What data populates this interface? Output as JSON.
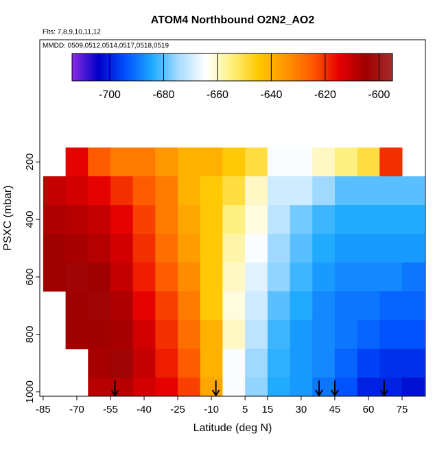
{
  "chart_data": {
    "type": "heatmap",
    "title": "ATOM4 Northbound O2N2_AO2",
    "flights": "Flts: 7,8,9,10,11,12",
    "dates": "MMDD: 0509,0512,0514,0517,0518,0519",
    "x_label": "Latitude (deg N)",
    "y_label": "PSXC (mbar)",
    "xlim": [
      -86.5,
      85.4
    ],
    "xticks": [
      -85,
      -70,
      -55,
      -40,
      -25,
      -10,
      5,
      15,
      30,
      45,
      60,
      75
    ],
    "ylim": [
      -225,
      1015
    ],
    "yticks": [
      200,
      400,
      600,
      800,
      1000
    ],
    "clim": [
      -714,
      -595
    ],
    "cticks": [
      -700,
      -680,
      -660,
      -640,
      -620,
      -600
    ],
    "colormap": [
      "#8a2be2",
      "#0000c8",
      "#0050ff",
      "#1eaaff",
      "#a8dcff",
      "#ffffff",
      "#fff07a",
      "#ffc800",
      "#ff9600",
      "#ff5a00",
      "#e60000",
      "#a00000",
      "#a52a2a"
    ],
    "lat_edges": [
      -85,
      -75,
      -65,
      -55,
      -45,
      -35,
      -25,
      -15,
      -5,
      5,
      15,
      25,
      35,
      45,
      55,
      65,
      75,
      85
    ],
    "pressure_edges": [
      150,
      250,
      350,
      450,
      550,
      650,
      750,
      850,
      950,
      1050
    ],
    "z": [
      [
        null,
        -615,
        -625,
        -630,
        -630,
        -635,
        -640,
        -640,
        -645,
        -650,
        -665,
        -665,
        -660,
        -655,
        -650,
        -620,
        null
      ],
      [
        -610,
        -612,
        -615,
        -620,
        -625,
        -630,
        -640,
        -645,
        -650,
        -660,
        -670,
        -670,
        -675,
        -680,
        -680,
        -680,
        -680
      ],
      [
        -607,
        -608,
        -610,
        -615,
        -622,
        -630,
        -638,
        -645,
        -655,
        -662,
        -672,
        -678,
        -682,
        -684,
        -684,
        -684,
        -684
      ],
      [
        -605,
        -606,
        -608,
        -612,
        -620,
        -628,
        -636,
        -645,
        -658,
        -665,
        -675,
        -680,
        -684,
        -686,
        -686,
        -686,
        -686
      ],
      [
        -605,
        -604,
        -605,
        -610,
        -618,
        -625,
        -633,
        -645,
        -660,
        -668,
        -676,
        -682,
        -686,
        -688,
        -688,
        -688,
        -690
      ],
      [
        null,
        -605,
        -604,
        -607,
        -615,
        -622,
        -630,
        -645,
        -662,
        -670,
        -680,
        -684,
        -688,
        -690,
        -690,
        -692,
        -692
      ],
      [
        null,
        -605,
        -605,
        -606,
        -612,
        -620,
        -628,
        -640,
        -660,
        -672,
        -682,
        -686,
        -688,
        -690,
        -692,
        -694,
        -694
      ],
      [
        null,
        null,
        -606,
        -604,
        -610,
        -618,
        -625,
        -640,
        -665,
        -675,
        -683,
        -686,
        -688,
        -692,
        -696,
        -698,
        -698
      ],
      [
        null,
        null,
        -608,
        -608,
        -612,
        -615,
        -622,
        -638,
        -665,
        -676,
        -684,
        -686,
        -690,
        -694,
        -700,
        -700,
        -702
      ]
    ],
    "flight_latitudes": [
      -53,
      -8,
      38,
      45,
      67
    ]
  }
}
